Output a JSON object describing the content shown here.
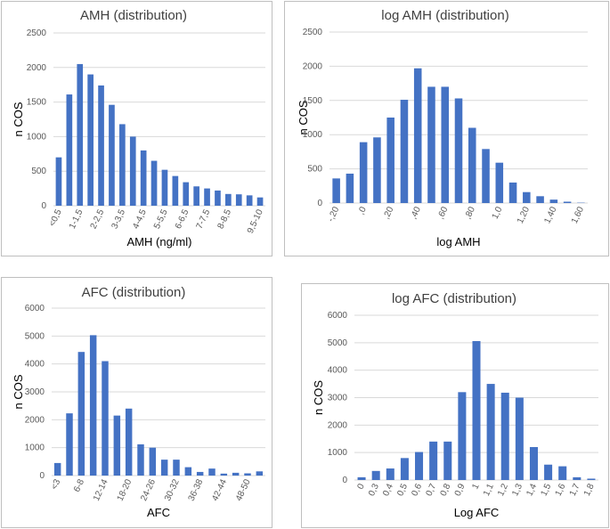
{
  "chart_data": [
    {
      "type": "bar",
      "title": "AMH (distribution)",
      "x_label": "AMH (ng/ml)",
      "y_label": "n COS",
      "color": "#4472c4",
      "grid": true,
      "categories": [
        "<0,5",
        null,
        "1-1,5",
        null,
        "2-2,5",
        null,
        "3-3,5",
        null,
        "4-4,5",
        null,
        "5-5,5",
        null,
        "6-6,5",
        null,
        "7-7,5",
        null,
        "8-8,5",
        null,
        null,
        "9,5-10"
      ],
      "values": [
        700,
        1610,
        2050,
        1900,
        1740,
        1460,
        1180,
        1000,
        800,
        650,
        520,
        430,
        340,
        280,
        250,
        220,
        170,
        165,
        150,
        120
      ],
      "ylim": [
        0,
        2500
      ],
      "yticks": [
        0,
        500,
        1000,
        1500,
        2000,
        2500
      ]
    },
    {
      "type": "bar",
      "title": "log AMH (distribution)",
      "x_label": "log AMH",
      "y_label": "n COS",
      "color": "#4472c4",
      "grid": true,
      "categories": [
        "-,20",
        null,
        ",0",
        null,
        ",20",
        null,
        ",40",
        null,
        ",60",
        null,
        ",80",
        null,
        "1,0",
        null,
        "1,20",
        null,
        "1,40",
        null,
        "1,60"
      ],
      "values": [
        360,
        430,
        890,
        960,
        1250,
        1510,
        1970,
        1700,
        1700,
        1530,
        1100,
        790,
        590,
        300,
        160,
        100,
        50,
        20,
        5
      ],
      "ylim": [
        0,
        2500
      ],
      "yticks": [
        0,
        500,
        1000,
        1500,
        2000,
        2500
      ]
    },
    {
      "type": "bar",
      "title": "AFC (distribution)",
      "x_label": "AFC",
      "y_label": "n COS",
      "color": "#4472c4",
      "grid": true,
      "categories": [
        "<3",
        null,
        "6-8",
        null,
        "12-14",
        null,
        "18-20",
        null,
        "24-26",
        null,
        "30-32",
        null,
        "36-38",
        null,
        "42-44",
        null,
        "48-50",
        null
      ],
      "values": [
        450,
        2230,
        4430,
        5030,
        4100,
        2150,
        2400,
        1120,
        1000,
        570,
        570,
        300,
        130,
        250,
        70,
        100,
        80,
        150
      ],
      "ylim": [
        0,
        6000
      ],
      "yticks": [
        0,
        1000,
        2000,
        3000,
        4000,
        5000,
        6000
      ]
    },
    {
      "type": "bar",
      "title": "log AFC (distribution)",
      "x_label": "Log AFC",
      "y_label": "n COS",
      "color": "#4472c4",
      "grid": true,
      "categories": [
        "0",
        "0,3",
        "0,4",
        "0,5",
        "0,6",
        "0,7",
        "0,8",
        "0,9",
        "1",
        "1,1",
        "1,2",
        "1,3",
        "1,4",
        "1,5",
        "1,6",
        "1,7",
        "1,8"
      ],
      "values": [
        100,
        330,
        420,
        800,
        1020,
        1400,
        1400,
        3200,
        5060,
        3500,
        3180,
        3000,
        1200,
        560,
        500,
        100,
        50
      ],
      "ylim": [
        0,
        6000
      ],
      "yticks": [
        0,
        1000,
        2000,
        3000,
        4000,
        5000,
        6000
      ]
    }
  ]
}
